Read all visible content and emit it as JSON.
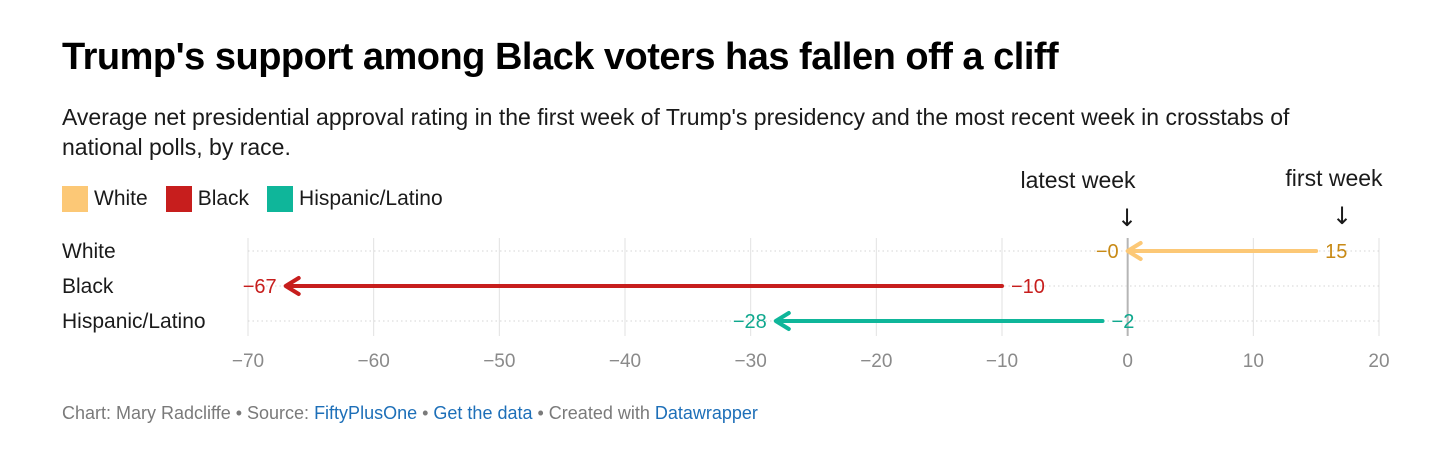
{
  "title": "Trump's support among Black voters has fallen off a cliff",
  "subtitle": "Average net presidential approval rating in the first week of Trump's presidency and the most recent week in crosstabs of national polls, by race.",
  "legend": [
    {
      "name": "White",
      "color": "#fcc876"
    },
    {
      "name": "Black",
      "color": "#c71e1d"
    },
    {
      "name": "Hispanic/Latino",
      "color": "#0fb69a"
    }
  ],
  "annotations": {
    "latest": "latest week",
    "first": "first week",
    "arrow": "↓"
  },
  "chart_data": {
    "type": "arrow",
    "xlim": [
      -70,
      20
    ],
    "xticks": [
      -70,
      -60,
      -50,
      -40,
      -30,
      -20,
      -10,
      0,
      10,
      20
    ],
    "tick_labels": [
      "−70",
      "−60",
      "−50",
      "−40",
      "−30",
      "−20",
      "−10",
      "0",
      "10",
      "20"
    ],
    "grid": true,
    "series": [
      {
        "name": "White",
        "first": 15,
        "latest": 0,
        "first_label": "15",
        "latest_label": "−0",
        "color": "#fcc876",
        "label_color": "#c88a16"
      },
      {
        "name": "Black",
        "first": -10,
        "latest": -67,
        "first_label": "−10",
        "latest_label": "−67",
        "color": "#c71e1d",
        "label_color": "#c71e1d"
      },
      {
        "name": "Hispanic/Latino",
        "first": -2,
        "latest": -28,
        "first_label": "−2",
        "latest_label": "−28",
        "color": "#0fb69a",
        "label_color": "#0fa88e"
      }
    ]
  },
  "footer": {
    "prefix": "Chart: Mary Radcliffe • Source: ",
    "source": "FiftyPlusOne",
    "sep1": " • ",
    "get_data": "Get the data",
    "sep2": " • Created with ",
    "tool": "Datawrapper"
  }
}
